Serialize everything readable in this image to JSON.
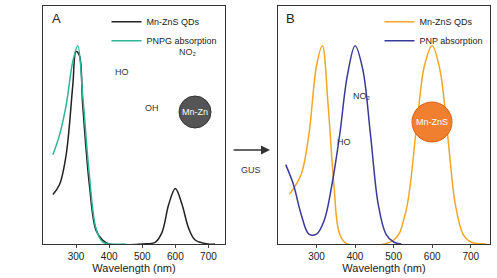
{
  "chart_data": [
    {
      "type": "line",
      "title": "A",
      "x_label": "Wavelength (nm)",
      "xlim": [
        200,
        750
      ],
      "xticks": [
        300,
        400,
        500,
        600,
        700
      ],
      "ylim": [
        0,
        1.2
      ],
      "tick_labels": "x",
      "legend": "top-right",
      "series": [
        {
          "name": "Mn-ZnS QDs",
          "color": "#222222",
          "x": [
            230,
            250,
            270,
            290,
            300,
            310,
            320,
            340,
            360,
            380,
            400,
            500,
            540,
            560,
            580,
            600,
            620,
            640,
            660,
            700,
            720
          ],
          "values": [
            0.25,
            0.3,
            0.45,
            0.8,
            0.97,
            0.95,
            0.7,
            0.3,
            0.07,
            0.02,
            0,
            0,
            0.01,
            0.06,
            0.2,
            0.28,
            0.2,
            0.08,
            0.02,
            0,
            0
          ]
        },
        {
          "name": "PNPG absorption",
          "color": "#2bb59a",
          "x": [
            230,
            250,
            270,
            290,
            305,
            320,
            340,
            360,
            380,
            400,
            450
          ],
          "values": [
            0.45,
            0.55,
            0.7,
            0.92,
            1.0,
            0.75,
            0.35,
            0.08,
            0.01,
            0,
            0
          ]
        }
      ],
      "annotations": [
        "HO",
        "OH",
        "NO₂",
        "Mn-Zn",
        "GUS"
      ]
    },
    {
      "type": "line",
      "title": "B",
      "x_label": "Wavelength (nm)",
      "xlim": [
        200,
        750
      ],
      "xticks": [
        300,
        400,
        500,
        600,
        700
      ],
      "ylim": [
        0,
        1.2
      ],
      "tick_labels": "x",
      "legend": "top-right",
      "series": [
        {
          "name": "Mn-ZnS QDs",
          "color": "#f5a623",
          "x": [
            230,
            260,
            280,
            300,
            315,
            330,
            345,
            360,
            380,
            500,
            530,
            560,
            580,
            600,
            620,
            640,
            660,
            680,
            700,
            740
          ],
          "values": [
            0.25,
            0.35,
            0.55,
            0.9,
            1.0,
            0.7,
            0.3,
            0.05,
            0,
            0.02,
            0.15,
            0.6,
            0.9,
            1.0,
            0.88,
            0.55,
            0.2,
            0.05,
            0.01,
            0
          ]
        },
        {
          "name": "PNP absorption",
          "color": "#3a3a9a",
          "x": [
            220,
            240,
            260,
            280,
            300,
            320,
            340,
            360,
            380,
            400,
            420,
            440,
            460,
            480,
            500,
            520
          ],
          "values": [
            0.4,
            0.3,
            0.15,
            0.05,
            0.05,
            0.12,
            0.3,
            0.55,
            0.85,
            1.0,
            0.88,
            0.55,
            0.2,
            0.05,
            0.01,
            0
          ]
        }
      ],
      "annotations": [
        "NO₂",
        "HO",
        "Mn-ZnS"
      ]
    }
  ]
}
